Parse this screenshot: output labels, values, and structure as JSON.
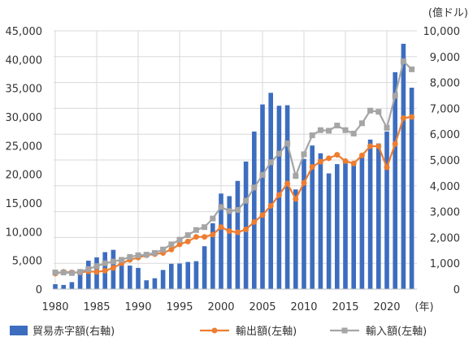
{
  "chart_data": {
    "type": "bar",
    "title": "",
    "right_unit": "(億ドル)",
    "x_unit": "(年)",
    "grid": true,
    "legend_position": "bottom",
    "x": [
      1980,
      1981,
      1982,
      1983,
      1984,
      1985,
      1986,
      1987,
      1988,
      1989,
      1990,
      1991,
      1992,
      1993,
      1994,
      1995,
      1996,
      1997,
      1998,
      1999,
      2000,
      2001,
      2002,
      2003,
      2004,
      2005,
      2006,
      2007,
      2008,
      2009,
      2010,
      2011,
      2012,
      2013,
      2014,
      2015,
      2016,
      2017,
      2018,
      2019,
      2020,
      2021,
      2022,
      2023
    ],
    "x_tick_labels": [
      "1980",
      "1985",
      "1990",
      "1995",
      "2000",
      "2005",
      "2010",
      "2015",
      "2020"
    ],
    "left_axis": {
      "ylim": [
        0,
        45000
      ],
      "ticks": [
        "0",
        "5,000",
        "10,000",
        "15,000",
        "20,000",
        "25,000",
        "30,000",
        "35,000",
        "40,000",
        "45,000"
      ]
    },
    "right_axis": {
      "ylim": [
        0,
        10000
      ],
      "ticks": [
        "0",
        "1,000",
        "2,000",
        "3,000",
        "4,000",
        "5,000",
        "6,000",
        "7,000",
        "8,000",
        "9,000",
        "10,000"
      ]
    },
    "series": [
      {
        "name": "貿易赤字額(右軸)",
        "type": "bar",
        "axis": "right",
        "color": "#3D6DBF",
        "values": [
          190,
          160,
          270,
          680,
          1100,
          1230,
          1430,
          1520,
          1180,
          910,
          820,
          340,
          420,
          740,
          980,
          990,
          1050,
          1080,
          1660,
          2550,
          3700,
          3600,
          4190,
          4940,
          6100,
          7150,
          7600,
          7100,
          7120,
          3860,
          5040,
          5560,
          5260,
          4480,
          4840,
          4910,
          4820,
          5100,
          5790,
          5640,
          6100,
          8400,
          9500,
          7800
        ]
      },
      {
        "name": "輸出額(左軸)",
        "type": "line",
        "axis": "left",
        "color": "#ED7D31",
        "marker": "circle",
        "values": [
          2700,
          3000,
          2900,
          2900,
          3100,
          3000,
          3200,
          3700,
          4500,
          5100,
          5500,
          5900,
          6100,
          6300,
          6900,
          7800,
          8300,
          9100,
          9100,
          9500,
          10800,
          10100,
          9900,
          10400,
          11700,
          12900,
          14500,
          16400,
          18400,
          15700,
          18500,
          21300,
          22200,
          22800,
          23400,
          22300,
          21900,
          23300,
          24900,
          24900,
          21200,
          25300,
          29800,
          30000
        ]
      },
      {
        "name": "輸入額(左軸)",
        "type": "line",
        "axis": "left",
        "color": "#A5A5A5",
        "marker": "square",
        "values": [
          2900,
          2900,
          2800,
          3000,
          3500,
          4000,
          4500,
          4800,
          5100,
          5600,
          5900,
          6000,
          6300,
          6900,
          7800,
          8600,
          9400,
          10300,
          10800,
          12300,
          14300,
          13600,
          13800,
          15400,
          17700,
          19900,
          22100,
          23600,
          25400,
          19700,
          23500,
          26800,
          27700,
          27600,
          28500,
          27700,
          27100,
          28900,
          31100,
          30900,
          28100,
          33700,
          39700,
          38300
        ]
      }
    ]
  }
}
